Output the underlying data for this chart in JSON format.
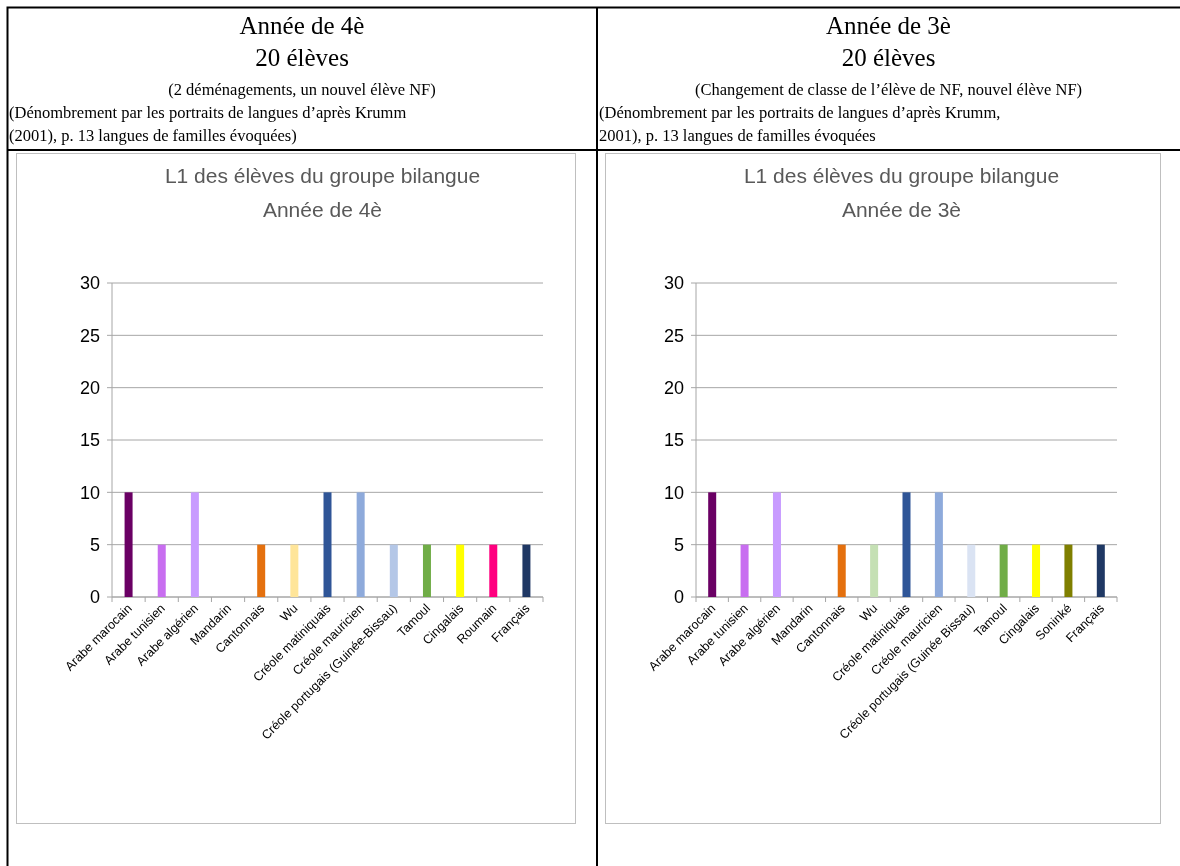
{
  "chart_data": [
    {
      "type": "bar",
      "title": "L1 des élèves du groupe bilangue",
      "subtitle": "Année de 4è",
      "annotations": [
        "Année de 4è",
        "20 élèves",
        "(2 déménagements, un nouvel élève NF)",
        "(Dénombrement par les portraits de langues d’après Krumm",
        "(2001), p. 13 langues de familles évoquées)"
      ],
      "categories": [
        "Arabe marocain",
        "Arabe tunisien",
        "Arabe algérien",
        "Mandarin",
        "Cantonnais",
        "Wu",
        "Créole matiniquais",
        "Créole mauricien",
        "Créole portugais (Guinée-Bissau)",
        "Tamoul",
        "Cingalais",
        "Roumain",
        "Français"
      ],
      "values": [
        10,
        5,
        10,
        0,
        5,
        5,
        10,
        10,
        5,
        5,
        5,
        5,
        5
      ],
      "colors": [
        "#6a0064",
        "#c86ef0",
        "#c89bff",
        "#000000",
        "#e4700e",
        "#ffe599",
        "#2f5597",
        "#8eaadb",
        "#b4c7e7",
        "#70ad47",
        "#ffff00",
        "#ff007f",
        "#1f3864"
      ],
      "ylim": [
        0,
        30
      ],
      "yticks": [
        0,
        5,
        10,
        15,
        20,
        25,
        30
      ],
      "grid": "y"
    },
    {
      "type": "bar",
      "title": "L1 des élèves du groupe bilangue",
      "subtitle": "Année de 3è",
      "annotations": [
        "Année de 3è",
        "20 élèves",
        "(Changement de classe de l’élève de NF, nouvel élève NF)",
        "(Dénombrement par les portraits de langues d’après Krumm,",
        "2001), p. 13 langues de familles évoquées"
      ],
      "categories": [
        "Arabe marocain",
        "Arabe tunisien",
        "Arabe algérien",
        "Mandarin",
        "Cantonnais",
        "Wu",
        "Créole matiniquais",
        "Créole mauricien",
        "Créole portugais (Guinée Bissau)",
        "Tamoul",
        "Cingalais",
        "Soninké",
        "Français"
      ],
      "values": [
        10,
        5,
        10,
        0,
        5,
        5,
        10,
        10,
        5,
        5,
        5,
        5,
        5
      ],
      "colors": [
        "#6a0064",
        "#c86ef0",
        "#c89bff",
        "#000000",
        "#e4700e",
        "#c5e0b4",
        "#2f5597",
        "#8eaadb",
        "#dae3f3",
        "#70ad47",
        "#ffff00",
        "#7f7f00",
        "#1f3864"
      ],
      "ylim": [
        0,
        30
      ],
      "yticks": [
        0,
        5,
        10,
        15,
        20,
        25,
        30
      ],
      "grid": "y"
    }
  ]
}
